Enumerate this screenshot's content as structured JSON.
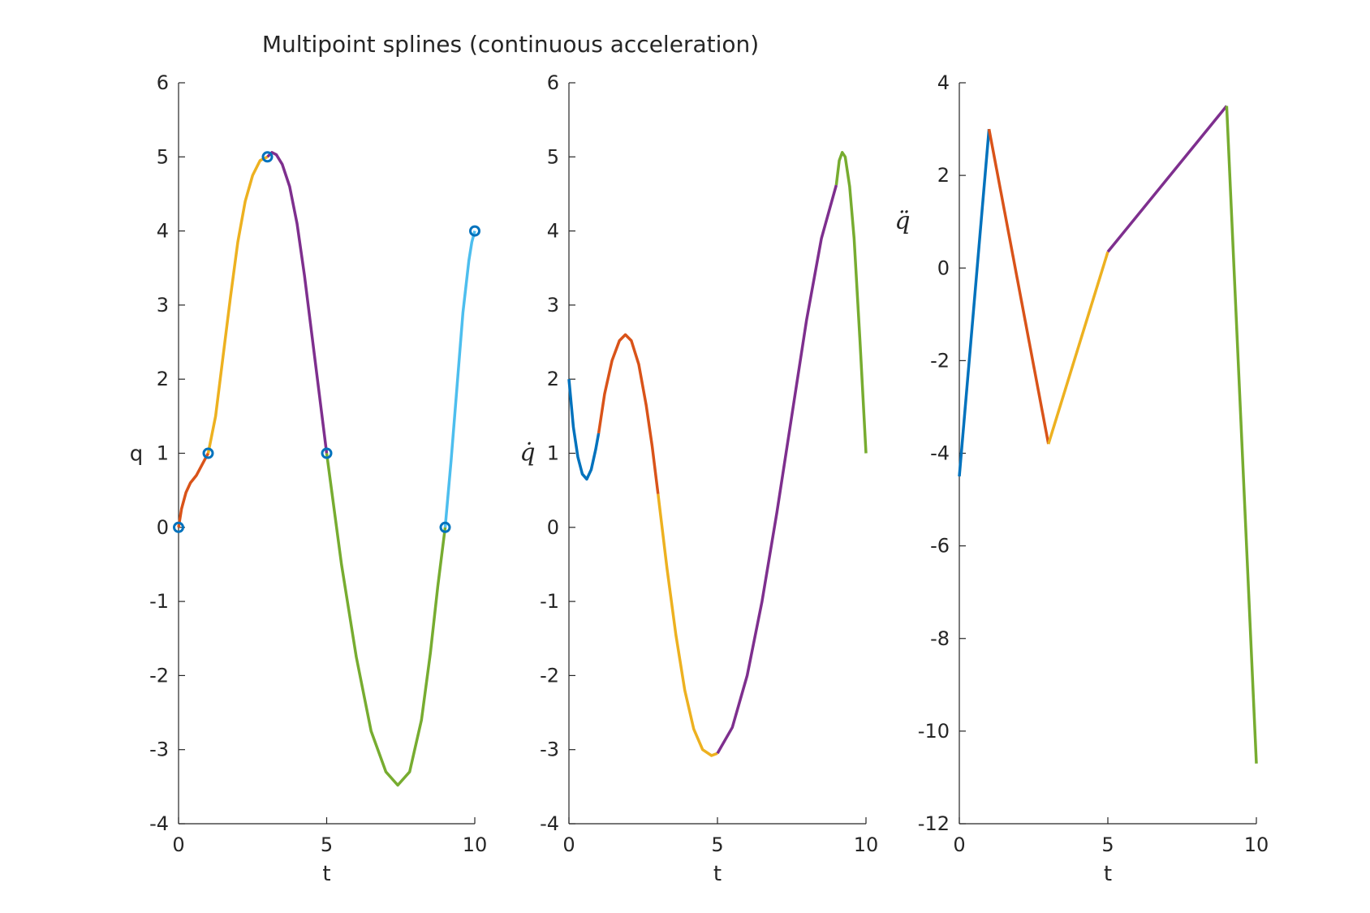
{
  "title": "Multipoint splines (continuous acceleration)",
  "colors": {
    "seg1": "#0072BD",
    "seg2": "#D95319",
    "seg3": "#EDB120",
    "seg4": "#7E2F8E",
    "seg5": "#77AC30",
    "seg6": "#4DBEEE",
    "axis": "#262626",
    "marker": "#0072BD"
  },
  "chart_data": [
    {
      "type": "line",
      "xlabel": "t",
      "ylabel": "q",
      "xlim": [
        0,
        10
      ],
      "ylim": [
        -4,
        6
      ],
      "xticks": [
        "0",
        "5",
        "10"
      ],
      "yticks": [
        "-4",
        "-3",
        "-2",
        "-1",
        "0",
        "1",
        "2",
        "3",
        "4",
        "5",
        "6"
      ],
      "grid": false,
      "markers": {
        "x": [
          0,
          1,
          3,
          5,
          9,
          10
        ],
        "y": [
          0,
          1,
          5,
          1,
          0,
          4
        ]
      },
      "series": [
        {
          "color": "seg2",
          "x": [
            0,
            0.1,
            0.25,
            0.4,
            0.6,
            0.8,
            1.0
          ],
          "y": [
            0,
            0.25,
            0.47,
            0.6,
            0.7,
            0.85,
            1.0
          ]
        },
        {
          "color": "seg3",
          "x": [
            1.0,
            1.25,
            1.5,
            1.75,
            2.0,
            2.25,
            2.5,
            2.75,
            3.0
          ],
          "y": [
            1.0,
            1.5,
            2.3,
            3.1,
            3.85,
            4.4,
            4.75,
            4.95,
            5.0
          ]
        },
        {
          "color": "seg4",
          "x": [
            3.0,
            3.15,
            3.3,
            3.5,
            3.75,
            4.0,
            4.25,
            4.5,
            4.75,
            5.0
          ],
          "y": [
            5.0,
            5.06,
            5.03,
            4.9,
            4.6,
            4.1,
            3.4,
            2.6,
            1.8,
            1.0
          ]
        },
        {
          "color": "seg5",
          "x": [
            5.0,
            5.5,
            6.0,
            6.5,
            7.0,
            7.4,
            7.8,
            8.2,
            8.5,
            8.75,
            9.0
          ],
          "y": [
            1.0,
            -0.5,
            -1.75,
            -2.75,
            -3.3,
            -3.48,
            -3.3,
            -2.6,
            -1.7,
            -0.8,
            0.0
          ]
        },
        {
          "color": "seg6",
          "x": [
            9.0,
            9.2,
            9.4,
            9.6,
            9.8,
            9.9,
            10.0
          ],
          "y": [
            0.0,
            0.9,
            1.9,
            2.9,
            3.6,
            3.85,
            4.0
          ]
        }
      ]
    },
    {
      "type": "line",
      "xlabel": "t",
      "ylabel": "q̇",
      "xlim": [
        0,
        10
      ],
      "ylim": [
        -4,
        6
      ],
      "xticks": [
        "0",
        "5",
        "10"
      ],
      "yticks": [
        "-4",
        "-3",
        "-2",
        "-1",
        "0",
        "1",
        "2",
        "3",
        "4",
        "5",
        "6"
      ],
      "grid": false,
      "series": [
        {
          "color": "seg1",
          "x": [
            0,
            0.15,
            0.3,
            0.45,
            0.6,
            0.75,
            0.9,
            1.0
          ],
          "y": [
            2.0,
            1.35,
            0.95,
            0.72,
            0.65,
            0.78,
            1.05,
            1.27
          ]
        },
        {
          "color": "seg2",
          "x": [
            1.0,
            1.2,
            1.45,
            1.7,
            1.9,
            2.1,
            2.35,
            2.6,
            2.8,
            3.0
          ],
          "y": [
            1.27,
            1.8,
            2.25,
            2.52,
            2.6,
            2.52,
            2.2,
            1.65,
            1.1,
            0.45
          ]
        },
        {
          "color": "seg3",
          "x": [
            3.0,
            3.3,
            3.6,
            3.9,
            4.2,
            4.5,
            4.8,
            5.0
          ],
          "y": [
            0.45,
            -0.55,
            -1.45,
            -2.2,
            -2.72,
            -3.0,
            -3.08,
            -3.05
          ]
        },
        {
          "color": "seg4",
          "x": [
            5.0,
            5.5,
            6.0,
            6.5,
            7.0,
            7.5,
            8.0,
            8.5,
            9.0
          ],
          "y": [
            -3.05,
            -2.7,
            -2.0,
            -1.0,
            0.2,
            1.5,
            2.8,
            3.9,
            4.62
          ]
        },
        {
          "color": "seg5",
          "x": [
            9.0,
            9.1,
            9.2,
            9.3,
            9.45,
            9.6,
            9.8,
            10.0
          ],
          "y": [
            4.62,
            4.95,
            5.06,
            5.0,
            4.6,
            3.9,
            2.5,
            1.0
          ]
        }
      ]
    },
    {
      "type": "line",
      "xlabel": "t",
      "ylabel": "q̈",
      "xlim": [
        0,
        10
      ],
      "ylim": [
        -12,
        4
      ],
      "xticks": [
        "0",
        "5",
        "10"
      ],
      "yticks": [
        "-12",
        "-10",
        "-8",
        "-6",
        "-4",
        "-2",
        "0",
        "2",
        "4"
      ],
      "grid": false,
      "series": [
        {
          "color": "seg1",
          "x": [
            0,
            1
          ],
          "y": [
            -4.5,
            3.0
          ]
        },
        {
          "color": "seg2",
          "x": [
            1,
            3
          ],
          "y": [
            3.0,
            -3.8
          ]
        },
        {
          "color": "seg3",
          "x": [
            3,
            5
          ],
          "y": [
            -3.8,
            0.35
          ]
        },
        {
          "color": "seg4",
          "x": [
            5,
            9
          ],
          "y": [
            0.35,
            3.5
          ]
        },
        {
          "color": "seg5",
          "x": [
            9,
            10
          ],
          "y": [
            3.5,
            -10.7
          ]
        }
      ]
    }
  ]
}
